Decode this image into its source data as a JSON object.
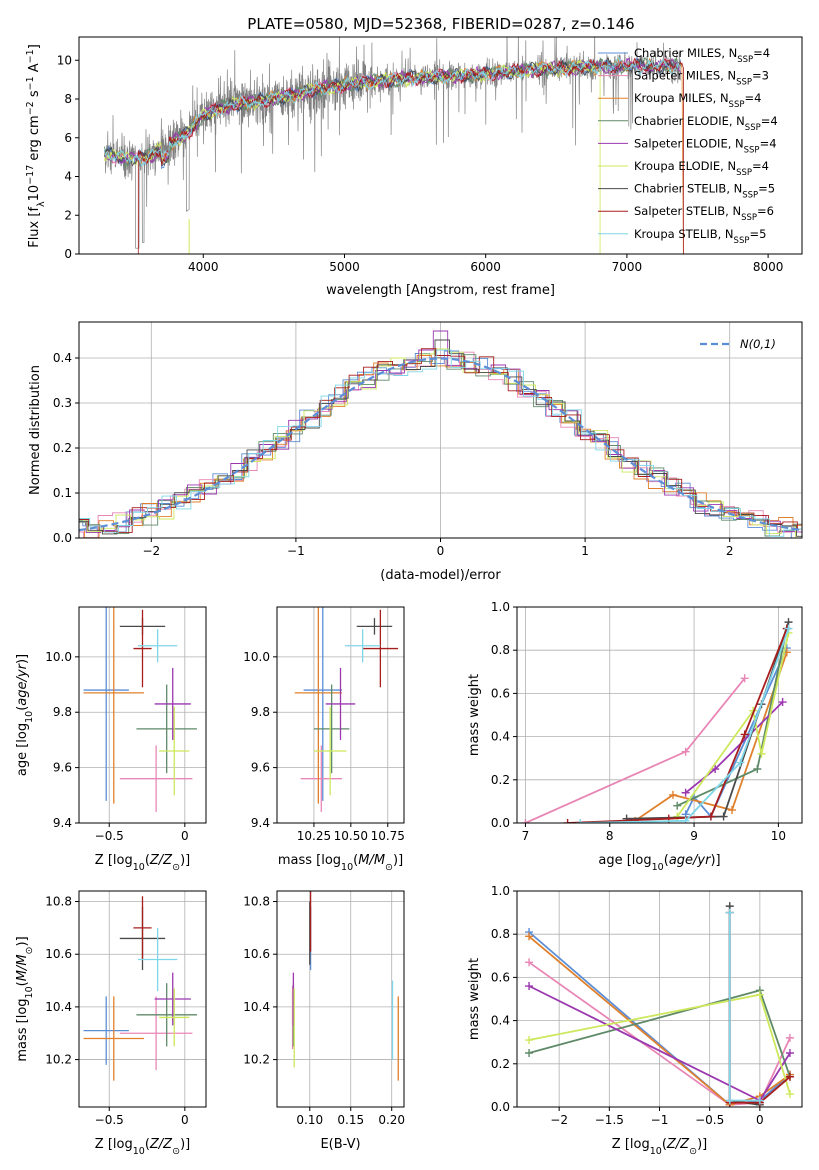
{
  "figure": {
    "title": "PLATE=0580, MJD=52368, FIBERID=0287, z=0.146"
  },
  "models": [
    {
      "label": "Chabrier MILES, N",
      "sub": "SSP",
      "tail": "=4",
      "color": "#5b8ed6"
    },
    {
      "label": "Salpeter MILES, N",
      "sub": "SSP",
      "tail": "=3",
      "color": "#e886b6"
    },
    {
      "label": "Kroupa MILES, N",
      "sub": "SSP",
      "tail": "=4",
      "color": "#e0802c"
    },
    {
      "label": "Chabrier ELODIE, N",
      "sub": "SSP",
      "tail": "=4",
      "color": "#5f8a68"
    },
    {
      "label": "Salpeter ELODIE, N",
      "sub": "SSP",
      "tail": "=4",
      "color": "#9b38b0"
    },
    {
      "label": "Kroupa ELODIE, N",
      "sub": "SSP",
      "tail": "=4",
      "color": "#cde85c"
    },
    {
      "label": "Chabrier STELIB, N",
      "sub": "SSP",
      "tail": "=5",
      "color": "#4a4a4a"
    },
    {
      "label": "Salpeter STELIB, N",
      "sub": "SSP",
      "tail": "=6",
      "color": "#a81e1e"
    },
    {
      "label": "Kroupa STELIB, N",
      "sub": "SSP",
      "tail": "=5",
      "color": "#7fd6e8"
    }
  ],
  "chart_data": [
    {
      "id": "spectrum",
      "type": "line",
      "xlabel": "wavelength [Angstrom, rest frame]",
      "ylabel": "Flux [f",
      "ylabel_sub": "λ",
      "ylabel_rest": "10",
      "ylabel_exp1": "−17",
      "ylabel_rest2": " erg cm",
      "ylabel_exp2": "−2",
      "ylabel_rest3": " s",
      "ylabel_exp3": "−1",
      "ylabel_rest4": " A",
      "ylabel_exp4": "−1",
      "ylabel_close": "]",
      "xlim": [
        3120,
        8240
      ],
      "ylim": [
        0,
        11.2
      ],
      "xticks": [
        4000,
        5000,
        6000,
        7000,
        8000
      ],
      "yticks": [
        0,
        2,
        4,
        6,
        8,
        10
      ],
      "data_color": "#808080",
      "continuum_points": [
        [
          3300,
          5.2
        ],
        [
          3450,
          4.9
        ],
        [
          3600,
          5.0
        ],
        [
          3750,
          5.6
        ],
        [
          3900,
          6.3
        ],
        [
          4000,
          7.2
        ],
        [
          4200,
          7.7
        ],
        [
          4500,
          8.0
        ],
        [
          4800,
          8.5
        ],
        [
          5000,
          8.7
        ],
        [
          5200,
          8.9
        ],
        [
          5500,
          9.1
        ],
        [
          5800,
          9.2
        ],
        [
          6000,
          9.3
        ],
        [
          6300,
          9.5
        ],
        [
          6600,
          9.6
        ],
        [
          6900,
          9.7
        ],
        [
          7100,
          9.7
        ],
        [
          7300,
          9.7
        ]
      ],
      "grid": false
    },
    {
      "id": "residuals",
      "type": "line",
      "xlabel": "(data-model)/error",
      "ylabel": "Normed distribution",
      "xlim": [
        -2.5,
        2.5
      ],
      "ylim": [
        0,
        0.48
      ],
      "xticks": [
        -2,
        -1,
        0,
        1,
        2
      ],
      "yticks": [
        0.0,
        0.1,
        0.2,
        0.3,
        0.4
      ],
      "gauss_label": "N(0,1)",
      "gauss_color": "#5b8ed6",
      "grid": true
    },
    {
      "id": "age_vs_Z",
      "type": "scatter",
      "xlabel": "Z [log10(Z/Z⊙)]",
      "ylabel": "age  [log10(age/yr)]",
      "xlim": [
        -0.7,
        0.14
      ],
      "ylim": [
        9.4,
        10.18
      ],
      "xticks": [
        -0.5,
        0.0
      ],
      "yticks": [
        9.4,
        9.6,
        9.8,
        10.0
      ],
      "points": [
        {
          "x": -0.52,
          "y": 9.88,
          "xerr": 0.15,
          "yerr": 0.4
        },
        {
          "x": -0.19,
          "y": 9.56,
          "xerr": 0.24,
          "yerr": 0.12
        },
        {
          "x": -0.47,
          "y": 9.87,
          "xerr": 0.2,
          "yerr": 0.4
        },
        {
          "x": -0.12,
          "y": 9.74,
          "xerr": 0.2,
          "yerr": 0.16
        },
        {
          "x": -0.08,
          "y": 9.83,
          "xerr": 0.12,
          "yerr": 0.13
        },
        {
          "x": -0.07,
          "y": 9.66,
          "xerr": 0.1,
          "yerr": 0.16
        },
        {
          "x": -0.28,
          "y": 10.11,
          "xerr": 0.15,
          "yerr": 0.03
        },
        {
          "x": -0.28,
          "y": 10.03,
          "xerr": 0.06,
          "yerr": 0.14
        },
        {
          "x": -0.18,
          "y": 10.04,
          "xerr": 0.13,
          "yerr": 0.06
        }
      ],
      "grid": true
    },
    {
      "id": "age_vs_mass",
      "type": "scatter",
      "xlabel": "mass [log10(M/M⊙)]",
      "ylabel": "",
      "xlim": [
        10.0,
        10.86
      ],
      "ylim": [
        9.4,
        10.18
      ],
      "xticks": [
        10.25,
        10.5,
        10.75
      ],
      "yticks": [
        9.4,
        9.6,
        9.8,
        10.0
      ],
      "xtick_labels": [
        "10.25",
        "10.50",
        "10.75"
      ],
      "points": [
        {
          "x": 10.31,
          "y": 9.88,
          "xerr": 0.13,
          "yerr": 0.4
        },
        {
          "x": 10.3,
          "y": 9.56,
          "xerr": 0.14,
          "yerr": 0.12
        },
        {
          "x": 10.28,
          "y": 9.87,
          "xerr": 0.16,
          "yerr": 0.4
        },
        {
          "x": 10.37,
          "y": 9.74,
          "xerr": 0.12,
          "yerr": 0.16
        },
        {
          "x": 10.43,
          "y": 9.83,
          "xerr": 0.1,
          "yerr": 0.13
        },
        {
          "x": 10.36,
          "y": 9.66,
          "xerr": 0.11,
          "yerr": 0.16
        },
        {
          "x": 10.66,
          "y": 10.11,
          "xerr": 0.12,
          "yerr": 0.03
        },
        {
          "x": 10.7,
          "y": 10.03,
          "xerr": 0.12,
          "yerr": 0.14
        },
        {
          "x": 10.58,
          "y": 10.04,
          "xerr": 0.12,
          "yerr": 0.06
        }
      ],
      "grid": true
    },
    {
      "id": "weight_vs_age",
      "type": "line",
      "xlabel": "age  [log10(age/yr)]",
      "ylabel": "mass weight",
      "xlim": [
        6.9,
        10.28
      ],
      "ylim": [
        0,
        1.0
      ],
      "xticks": [
        7,
        8,
        9,
        10
      ],
      "yticks": [
        0.0,
        0.2,
        0.4,
        0.6,
        0.8,
        1.0
      ],
      "series": [
        {
          "model": 0,
          "x": [
            8.9,
            9.0,
            9.2,
            10.1
          ],
          "y": [
            0.04,
            0.12,
            0.03,
            0.81
          ]
        },
        {
          "model": 1,
          "x": [
            7.0,
            8.9,
            9.6
          ],
          "y": [
            0.0,
            0.33,
            0.67
          ]
        },
        {
          "model": 2,
          "x": [
            8.3,
            8.75,
            9.45,
            10.1
          ],
          "y": [
            0.01,
            0.13,
            0.06,
            0.79
          ]
        },
        {
          "model": 3,
          "x": [
            8.8,
            9.75,
            10.1
          ],
          "y": [
            0.08,
            0.25,
            0.9
          ]
        },
        {
          "model": 4,
          "x": [
            8.9,
            9.25,
            10.05
          ],
          "y": [
            0.14,
            0.25,
            0.56
          ]
        },
        {
          "model": 5,
          "x": [
            8.8,
            9.7,
            9.8,
            10.12
          ],
          "y": [
            0.03,
            0.52,
            0.32,
            0.88
          ]
        },
        {
          "model": 6,
          "x": [
            8.2,
            9.35,
            9.8,
            10.12
          ],
          "y": [
            0.02,
            0.03,
            0.55,
            0.93
          ]
        },
        {
          "model": 7,
          "x": [
            7.5,
            8.7,
            9.2,
            9.6,
            10.1
          ],
          "y": [
            0.0,
            0.02,
            0.03,
            0.41,
            0.9
          ]
        },
        {
          "model": 8,
          "x": [
            7.65,
            8.9,
            9.55,
            10.12
          ],
          "y": [
            0.0,
            0.01,
            0.28,
            0.9
          ]
        }
      ],
      "grid": true
    },
    {
      "id": "mass_vs_Z",
      "type": "scatter",
      "xlabel": "Z [log10(Z/Z⊙)]",
      "ylabel": "mass [log10(M/M⊙)]",
      "xlim": [
        -0.7,
        0.14
      ],
      "ylim": [
        10.02,
        10.84
      ],
      "xticks": [
        -0.5,
        0.0
      ],
      "yticks": [
        10.2,
        10.4,
        10.6,
        10.8
      ],
      "points": [
        {
          "x": -0.52,
          "y": 10.31,
          "xerr": 0.15,
          "yerr": 0.13
        },
        {
          "x": -0.19,
          "y": 10.3,
          "xerr": 0.24,
          "yerr": 0.14
        },
        {
          "x": -0.47,
          "y": 10.28,
          "xerr": 0.2,
          "yerr": 0.16
        },
        {
          "x": -0.12,
          "y": 10.37,
          "xerr": 0.2,
          "yerr": 0.12
        },
        {
          "x": -0.08,
          "y": 10.43,
          "xerr": 0.12,
          "yerr": 0.1
        },
        {
          "x": -0.07,
          "y": 10.36,
          "xerr": 0.1,
          "yerr": 0.11
        },
        {
          "x": -0.28,
          "y": 10.66,
          "xerr": 0.15,
          "yerr": 0.12
        },
        {
          "x": -0.28,
          "y": 10.7,
          "xerr": 0.06,
          "yerr": 0.12
        },
        {
          "x": -0.18,
          "y": 10.58,
          "xerr": 0.13,
          "yerr": 0.12
        }
      ],
      "grid": true
    },
    {
      "id": "mass_vs_ebv",
      "type": "scatter",
      "xlabel": "E(B-V)",
      "ylabel": "",
      "xlim": [
        0.06,
        0.215
      ],
      "ylim": [
        10.02,
        10.84
      ],
      "xticks": [
        0.1,
        0.15,
        0.2
      ],
      "yticks": [
        10.2,
        10.4,
        10.6,
        10.8
      ],
      "xtick_labels": [
        "0.10",
        "0.15",
        "0.20"
      ],
      "points": [
        {
          "x": 0.101,
          "y": 10.66,
          "yerr": 0.12
        },
        {
          "x": 0.079,
          "y": 10.36,
          "yerr": 0.12
        },
        {
          "x": 0.208,
          "y": 10.28,
          "yerr": 0.16
        },
        {
          "x": 0.08,
          "y": 10.37,
          "yerr": 0.12
        },
        {
          "x": 0.08,
          "y": 10.43,
          "yerr": 0.1
        },
        {
          "x": 0.081,
          "y": 10.32,
          "yerr": 0.15
        },
        {
          "x": 0.1,
          "y": 10.68,
          "yerr": 0.12
        },
        {
          "x": 0.101,
          "y": 10.73,
          "yerr": 0.12
        },
        {
          "x": 0.201,
          "y": 10.35,
          "yerr": 0.15
        }
      ],
      "grid": true
    },
    {
      "id": "weight_vs_Z",
      "type": "line",
      "xlabel": "Z [log10(Z/Z⊙)]",
      "ylabel": "mass weight",
      "xlim": [
        -2.42,
        0.42
      ],
      "ylim": [
        0,
        1.0
      ],
      "xticks": [
        -2.0,
        -1.5,
        -1.0,
        -0.5,
        0.0
      ],
      "yticks": [
        0.0,
        0.2,
        0.4,
        0.6,
        0.8,
        1.0
      ],
      "series": [
        {
          "model": 0,
          "x": [
            -2.3,
            -0.3,
            0.0,
            0.3
          ],
          "y": [
            0.81,
            0.01,
            0.03,
            0.15
          ]
        },
        {
          "model": 1,
          "x": [
            -2.3,
            -0.3,
            0.0,
            0.3
          ],
          "y": [
            0.67,
            0.01,
            0.02,
            0.32
          ]
        },
        {
          "model": 2,
          "x": [
            -2.3,
            -0.3,
            0.0,
            0.3
          ],
          "y": [
            0.79,
            0.01,
            0.05,
            0.15
          ]
        },
        {
          "model": 3,
          "x": [
            -2.3,
            0.0,
            0.3
          ],
          "y": [
            0.25,
            0.54,
            0.14
          ]
        },
        {
          "model": 4,
          "x": [
            -2.3,
            0.0,
            0.3
          ],
          "y": [
            0.56,
            0.03,
            0.25
          ]
        },
        {
          "model": 5,
          "x": [
            -2.3,
            0.0,
            0.3
          ],
          "y": [
            0.31,
            0.52,
            0.06
          ]
        },
        {
          "model": 6,
          "x": [
            -0.3,
            -0.3,
            0.0
          ],
          "y": [
            0.93,
            0.03,
            0.01
          ]
        },
        {
          "model": 7,
          "x": [
            -0.3,
            -0.3,
            0.0,
            0.3
          ],
          "y": [
            0.9,
            0.02,
            0.02,
            0.14
          ]
        },
        {
          "model": 8,
          "x": [
            -0.3,
            -0.3,
            0.0
          ],
          "y": [
            0.9,
            0.03,
            0.03
          ]
        }
      ],
      "grid": true
    }
  ]
}
